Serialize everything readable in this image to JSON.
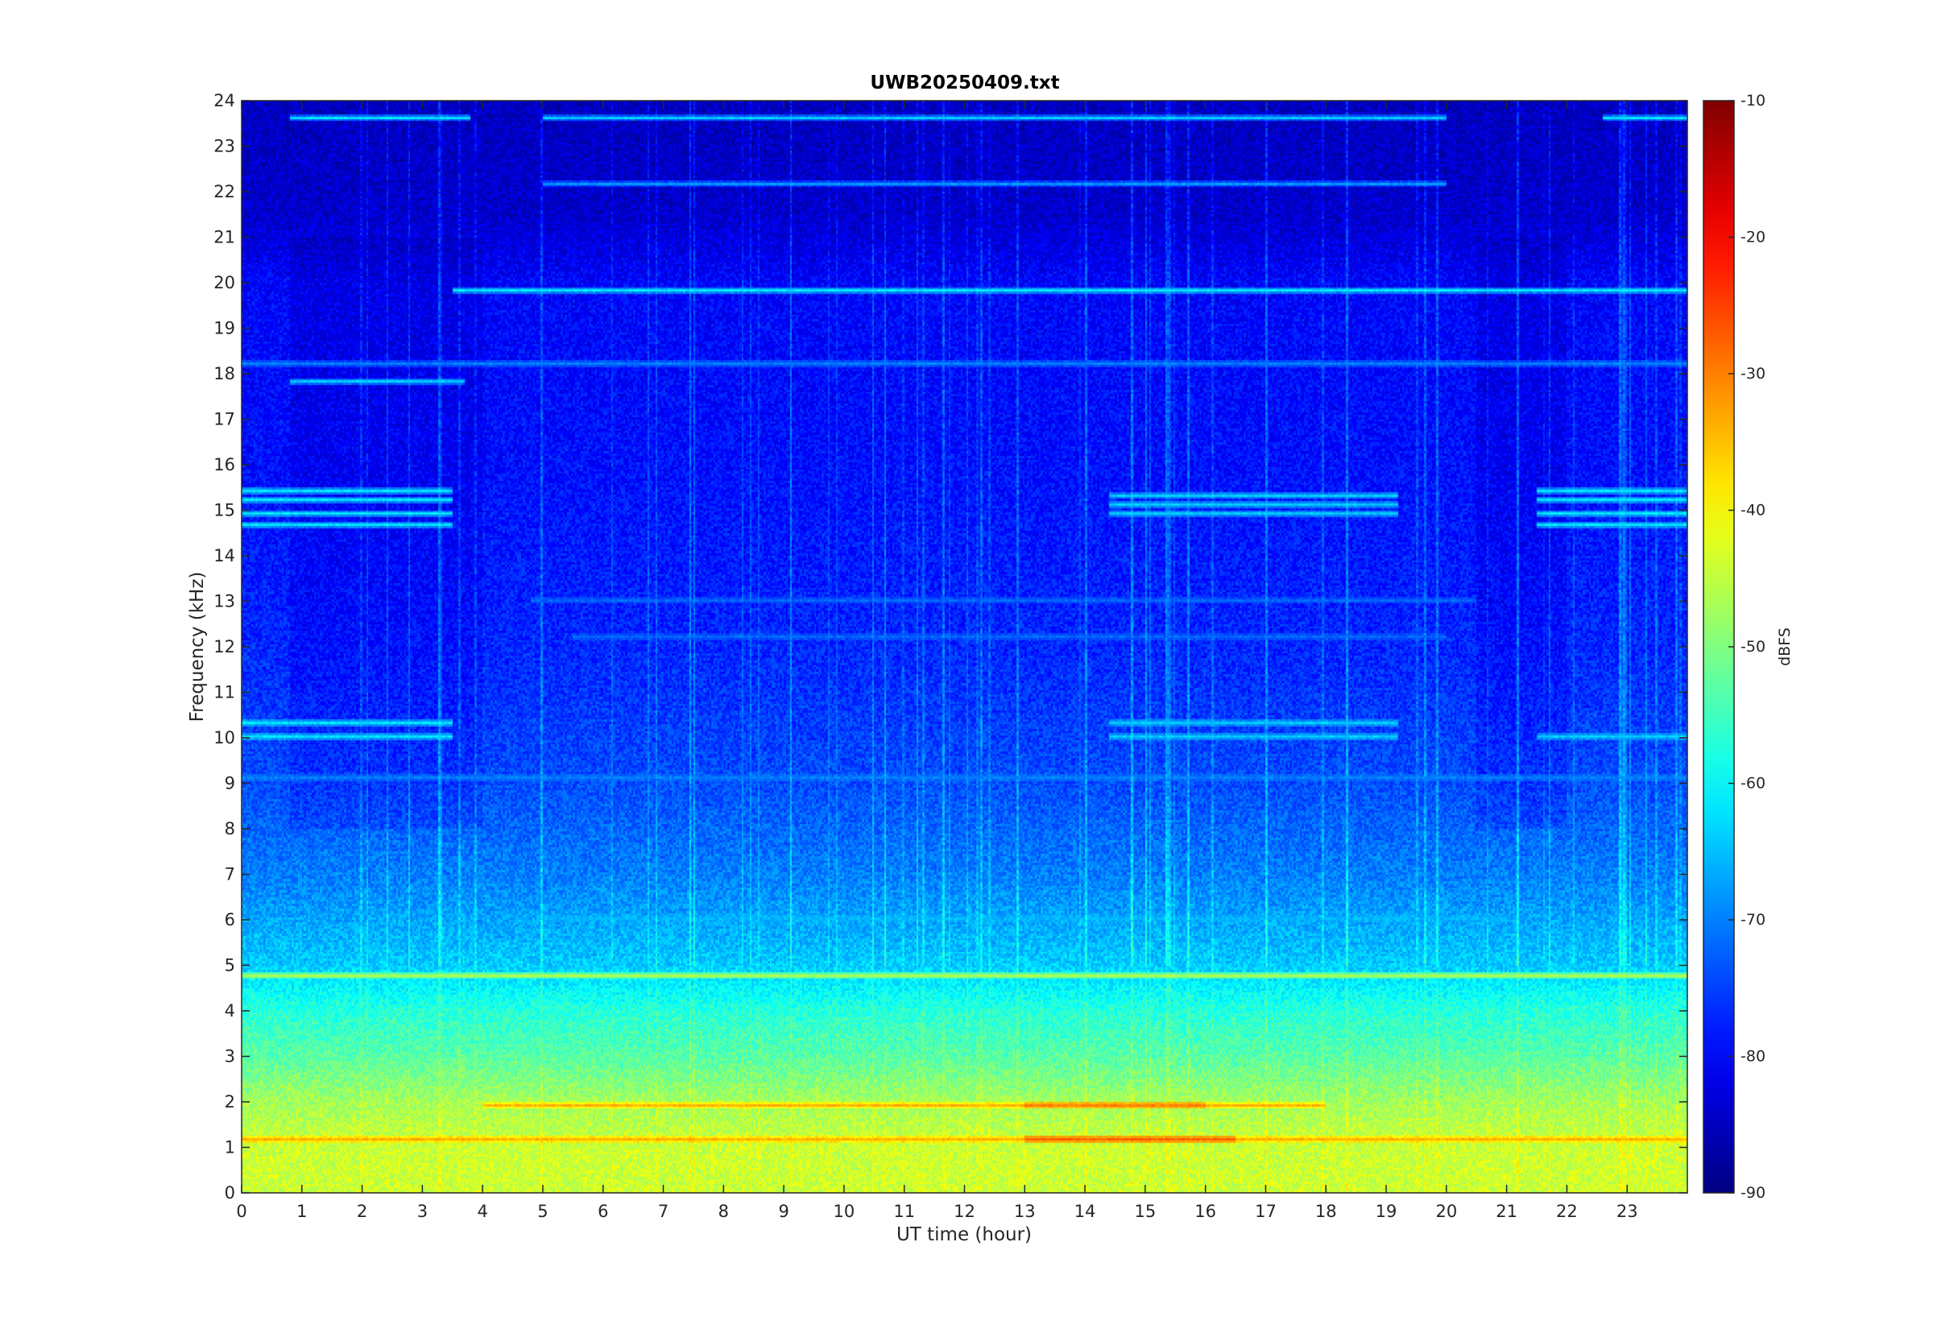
{
  "chart_data": {
    "type": "heatmap",
    "title": "UWB20250409.txt",
    "xlabel": "UT time (hour)",
    "ylabel": "Frequency (kHz)",
    "xlim": [
      0,
      24
    ],
    "ylim": [
      0,
      24
    ],
    "x_ticks": [
      0,
      1,
      2,
      3,
      4,
      5,
      6,
      7,
      8,
      9,
      10,
      11,
      12,
      13,
      14,
      15,
      16,
      17,
      18,
      19,
      20,
      21,
      22,
      23
    ],
    "y_ticks": [
      0,
      1,
      2,
      3,
      4,
      5,
      6,
      7,
      8,
      9,
      10,
      11,
      12,
      13,
      14,
      15,
      16,
      17,
      18,
      19,
      20,
      21,
      22,
      23,
      24
    ],
    "colorbar": {
      "label": "dBFS",
      "colormap": "jet",
      "clim": [
        -90,
        -10
      ],
      "ticks": [
        -10,
        -20,
        -30,
        -40,
        -50,
        -60,
        -70,
        -80,
        -90
      ]
    },
    "grid": false,
    "features": {
      "background_profile": [
        {
          "f": 0,
          "db": -44
        },
        {
          "f": 1,
          "db": -44
        },
        {
          "f": 2,
          "db": -47
        },
        {
          "f": 3,
          "db": -53
        },
        {
          "f": 4,
          "db": -57
        },
        {
          "f": 5,
          "db": -64
        },
        {
          "f": 6,
          "db": -67
        },
        {
          "f": 7,
          "db": -70
        },
        {
          "f": 8,
          "db": -72
        },
        {
          "f": 9,
          "db": -74
        },
        {
          "f": 12,
          "db": -77
        },
        {
          "f": 16,
          "db": -79
        },
        {
          "f": 20,
          "db": -80
        },
        {
          "f": 21.5,
          "db": -84
        },
        {
          "f": 24,
          "db": -85
        }
      ],
      "tones": [
        {
          "f": 19.8,
          "t_start": 3.5,
          "t_end": 24,
          "db": -62
        },
        {
          "f": 18.2,
          "t_start": 0,
          "t_end": 24,
          "db": -70
        },
        {
          "f": 17.8,
          "t_start": 0.8,
          "t_end": 3.7,
          "db": -64
        },
        {
          "f": 4.8,
          "t_start": 0,
          "t_end": 24,
          "db": -46
        },
        {
          "f": 1.15,
          "t_start": 0,
          "t_end": 24,
          "db": -34
        },
        {
          "f": 1.15,
          "t_start": 13,
          "t_end": 16.5,
          "db": -28
        },
        {
          "f": 1.9,
          "t_start": 4,
          "t_end": 18,
          "db": -34
        },
        {
          "f": 1.9,
          "t_start": 13,
          "t_end": 16,
          "db": -30
        },
        {
          "f": 22.2,
          "t_start": 5,
          "t_end": 20,
          "db": -68
        },
        {
          "f": 23.6,
          "t_start": 5,
          "t_end": 20,
          "db": -64
        },
        {
          "f": 23.6,
          "t_start": 0.8,
          "t_end": 3.8,
          "db": -62
        },
        {
          "f": 23.6,
          "t_start": 22.6,
          "t_end": 24,
          "db": -62
        },
        {
          "f": 6.0,
          "t_start": 5,
          "t_end": 21,
          "db": -66
        },
        {
          "f": 13.0,
          "t_start": 4.8,
          "t_end": 20.5,
          "db": -72
        },
        {
          "f": 12.2,
          "t_start": 5.5,
          "t_end": 20,
          "db": -72
        },
        {
          "f": 9.1,
          "t_start": 0,
          "t_end": 24,
          "db": -70
        }
      ],
      "tone_groups": [
        {
          "f_list": [
            15.4,
            15.2,
            14.9,
            14.7
          ],
          "t_start": 0,
          "t_end": 3.5,
          "db": -62
        },
        {
          "f_list": [
            15.4,
            15.2,
            14.9,
            14.7
          ],
          "t_start": 21.5,
          "t_end": 24,
          "db": -62
        },
        {
          "f_list": [
            15.3,
            15.1,
            14.9
          ],
          "t_start": 14.4,
          "t_end": 19.2,
          "db": -64
        },
        {
          "f_list": [
            10.3,
            10.0
          ],
          "t_start": 0,
          "t_end": 3.5,
          "db": -62
        },
        {
          "f_list": [
            10.3,
            10.0
          ],
          "t_start": 14.4,
          "t_end": 19.2,
          "db": -64
        },
        {
          "f_list": [
            10.0
          ],
          "t_start": 21.5,
          "t_end": 24,
          "db": -64
        }
      ]
    }
  }
}
